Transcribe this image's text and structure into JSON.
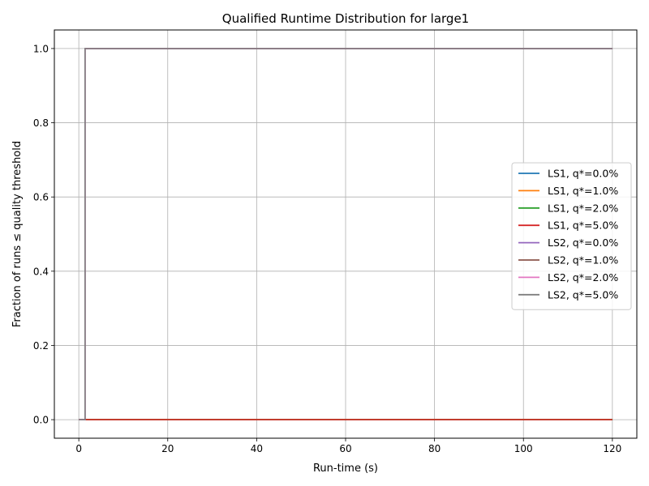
{
  "chart_data": {
    "type": "line",
    "title": "Qualified Runtime Distribution for large1",
    "xlabel": "Run-time (s)",
    "ylabel": "Fraction of runs ≤ quality threshold",
    "xlim": [
      -5.5,
      125.5
    ],
    "ylim": [
      -0.05,
      1.05
    ],
    "xticks": [
      0,
      20,
      40,
      60,
      80,
      100,
      120
    ],
    "yticks": [
      0.0,
      0.2,
      0.4,
      0.6,
      0.8,
      1.0
    ],
    "xtick_labels": [
      "0",
      "20",
      "40",
      "60",
      "80",
      "100",
      "120"
    ],
    "ytick_labels": [
      "0.0",
      "0.2",
      "0.4",
      "0.6",
      "0.8",
      "1.0"
    ],
    "grid": true,
    "legend_position": "center-right",
    "series": [
      {
        "name": "LS1, q*=0.0%",
        "color": "#1f77b4",
        "x": [
          0,
          120
        ],
        "y": [
          0,
          0
        ]
      },
      {
        "name": "LS1, q*=1.0%",
        "color": "#ff7f0e",
        "x": [
          0,
          120
        ],
        "y": [
          0,
          0
        ]
      },
      {
        "name": "LS1, q*=2.0%",
        "color": "#2ca02c",
        "x": [
          0,
          120
        ],
        "y": [
          0,
          0
        ]
      },
      {
        "name": "LS1, q*=5.0%",
        "color": "#d62728",
        "x": [
          0,
          120
        ],
        "y": [
          0,
          0
        ]
      },
      {
        "name": "LS2, q*=0.0%",
        "color": "#9467bd",
        "x": [
          0,
          1.4,
          1.4,
          120
        ],
        "y": [
          0,
          0,
          1,
          1
        ]
      },
      {
        "name": "LS2, q*=1.0%",
        "color": "#8c564b",
        "x": [
          0,
          1.4,
          1.4,
          120
        ],
        "y": [
          0,
          0,
          1,
          1
        ]
      },
      {
        "name": "LS2, q*=2.0%",
        "color": "#e377c2",
        "x": [
          0,
          1.4,
          1.4,
          120
        ],
        "y": [
          0,
          0,
          1,
          1
        ]
      },
      {
        "name": "LS2, q*=5.0%",
        "color": "#7f7f7f",
        "x": [
          0,
          1.4,
          1.4,
          120
        ],
        "y": [
          0,
          0,
          1,
          1
        ]
      }
    ]
  }
}
